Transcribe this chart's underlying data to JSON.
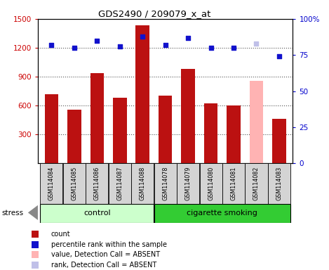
{
  "title": "GDS2490 / 209079_x_at",
  "samples": [
    "GSM114084",
    "GSM114085",
    "GSM114086",
    "GSM114087",
    "GSM114088",
    "GSM114078",
    "GSM114079",
    "GSM114080",
    "GSM114081",
    "GSM114082",
    "GSM114083"
  ],
  "counts": [
    720,
    560,
    940,
    680,
    1430,
    700,
    980,
    620,
    600,
    null,
    460
  ],
  "ranks": [
    82,
    80,
    85,
    81,
    88,
    82,
    87,
    80,
    80,
    null,
    74
  ],
  "absent_count": [
    null,
    null,
    null,
    null,
    null,
    null,
    null,
    null,
    null,
    860,
    null
  ],
  "absent_rank": [
    null,
    null,
    null,
    null,
    null,
    null,
    null,
    null,
    null,
    83,
    null
  ],
  "control_group": [
    0,
    1,
    2,
    3,
    4
  ],
  "smoking_group": [
    5,
    6,
    7,
    8,
    9,
    10
  ],
  "ylim_left": [
    0,
    1500
  ],
  "ylim_right": [
    0,
    100
  ],
  "yticks_left": [
    300,
    600,
    900,
    1200,
    1500
  ],
  "yticks_right": [
    0,
    25,
    50,
    75,
    100
  ],
  "bar_color": "#bb1111",
  "rank_color": "#1111cc",
  "absent_bar_color": "#ffb3b3",
  "absent_rank_color": "#c0c0e8",
  "control_bg": "#ccffcc",
  "smoking_bg": "#33cc33",
  "label_bg": "#d4d4d4",
  "legend_items": [
    "count",
    "percentile rank within the sample",
    "value, Detection Call = ABSENT",
    "rank, Detection Call = ABSENT"
  ],
  "legend_colors": [
    "#bb1111",
    "#1111cc",
    "#ffb3b3",
    "#c0c0e8"
  ],
  "grid_color": "#555555",
  "spine_color": "#000000",
  "ytick_left_color": "#cc0000",
  "ytick_right_color": "#0000cc"
}
